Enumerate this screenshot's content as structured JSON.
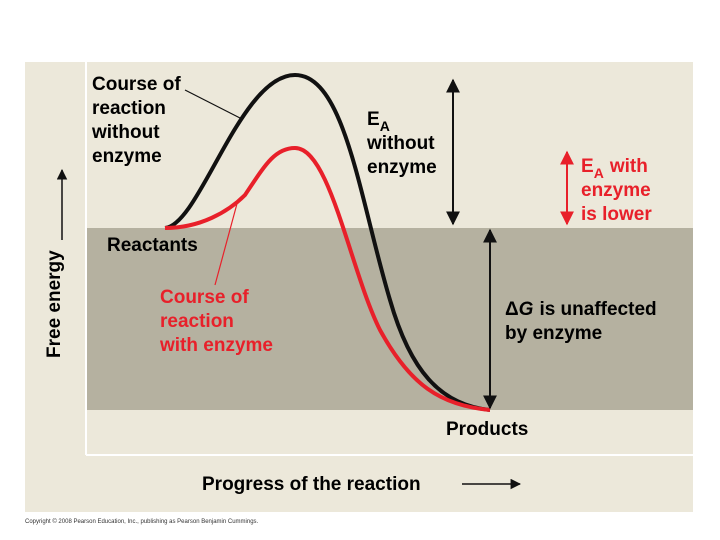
{
  "labels": {
    "without_enzyme_curve": [
      "Course of",
      "reaction",
      "without",
      "enzyme"
    ],
    "ea_without": {
      "symbol": "E",
      "subscript": "A",
      "lines": [
        "without",
        "enzyme"
      ]
    },
    "ea_with": {
      "symbol": "E",
      "subscript": "A",
      "lines": [
        "with",
        "enzyme",
        "is lower"
      ]
    },
    "reactants": "Reactants",
    "with_enzyme_curve": [
      "Course of",
      "reaction",
      "with enzyme"
    ],
    "delta_g": {
      "symbol": "Δ",
      "variable": "G",
      "lines": [
        "is unaffected",
        "by enzyme"
      ]
    },
    "products": "Products",
    "y_axis": "Free energy",
    "x_axis": "Progress of the reaction",
    "copyright": "Copyright © 2008 Pearson Education, Inc., publishing as Pearson Benjamin Cummings."
  }
}
